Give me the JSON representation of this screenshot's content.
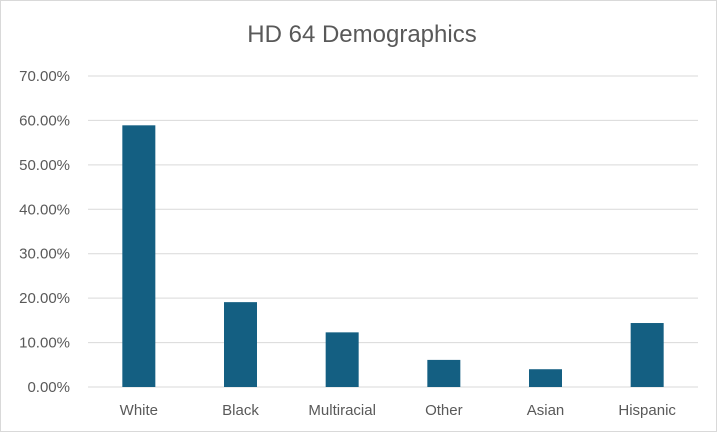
{
  "chart_data": {
    "type": "bar",
    "title": "HD 64 Demographics",
    "categories": [
      "White",
      "Black",
      "Multiracial",
      "Other",
      "Asian",
      "Hispanic"
    ],
    "values": [
      0.589,
      0.191,
      0.123,
      0.061,
      0.04,
      0.144
    ],
    "xlabel": "",
    "ylabel": "",
    "ylim": [
      0,
      0.7
    ],
    "yticks": [
      0,
      0.1,
      0.2,
      0.3,
      0.4,
      0.5,
      0.6,
      0.7
    ],
    "ytick_labels": [
      "0.00%",
      "10.00%",
      "20.00%",
      "30.00%",
      "40.00%",
      "50.00%",
      "60.00%",
      "70.00%"
    ],
    "grid": true,
    "legend": "none",
    "bar_color": "#145f82"
  }
}
